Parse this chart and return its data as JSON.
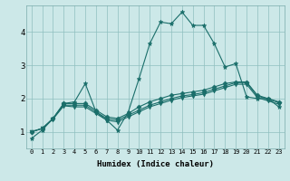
{
  "xlabel": "Humidex (Indice chaleur)",
  "background_color": "#cce8e8",
  "line_color": "#1a6e6a",
  "x_labels": [
    "0",
    "1",
    "2",
    "3",
    "4",
    "5",
    "6",
    "7",
    "8",
    "9",
    "10",
    "11",
    "12",
    "13",
    "14",
    "15",
    "16",
    "17",
    "18",
    "19",
    "20",
    "21",
    "22",
    "23"
  ],
  "ylim": [
    0.5,
    4.8
  ],
  "xlim": [
    -0.5,
    23.5
  ],
  "yticks": [
    1,
    2,
    3,
    4
  ],
  "series": {
    "line1": [
      0.8,
      1.05,
      1.4,
      1.85,
      1.9,
      2.45,
      1.6,
      1.35,
      1.05,
      1.6,
      2.6,
      3.65,
      4.3,
      4.25,
      4.6,
      4.2,
      4.2,
      3.65,
      2.95,
      3.05,
      2.05,
      2.0,
      2.0,
      1.75
    ],
    "line2": [
      1.0,
      1.1,
      1.4,
      1.85,
      1.85,
      1.85,
      1.65,
      1.45,
      1.4,
      1.55,
      1.75,
      1.9,
      2.0,
      2.1,
      2.15,
      2.2,
      2.25,
      2.35,
      2.45,
      2.5,
      2.5,
      2.1,
      2.0,
      1.9
    ],
    "line3": [
      1.0,
      1.1,
      1.4,
      1.8,
      1.8,
      1.8,
      1.6,
      1.4,
      1.35,
      1.5,
      1.65,
      1.8,
      1.9,
      2.0,
      2.08,
      2.12,
      2.18,
      2.28,
      2.38,
      2.48,
      2.48,
      2.08,
      1.98,
      1.88
    ],
    "line4": [
      1.0,
      1.1,
      1.38,
      1.78,
      1.75,
      1.75,
      1.55,
      1.35,
      1.3,
      1.45,
      1.6,
      1.75,
      1.85,
      1.95,
      2.03,
      2.08,
      2.13,
      2.23,
      2.33,
      2.43,
      2.43,
      2.03,
      1.93,
      1.83
    ]
  },
  "marker_sizes": [
    3.5,
    2.5,
    2.0,
    3.5
  ],
  "markers": [
    "*",
    "D",
    "D",
    "v"
  ]
}
